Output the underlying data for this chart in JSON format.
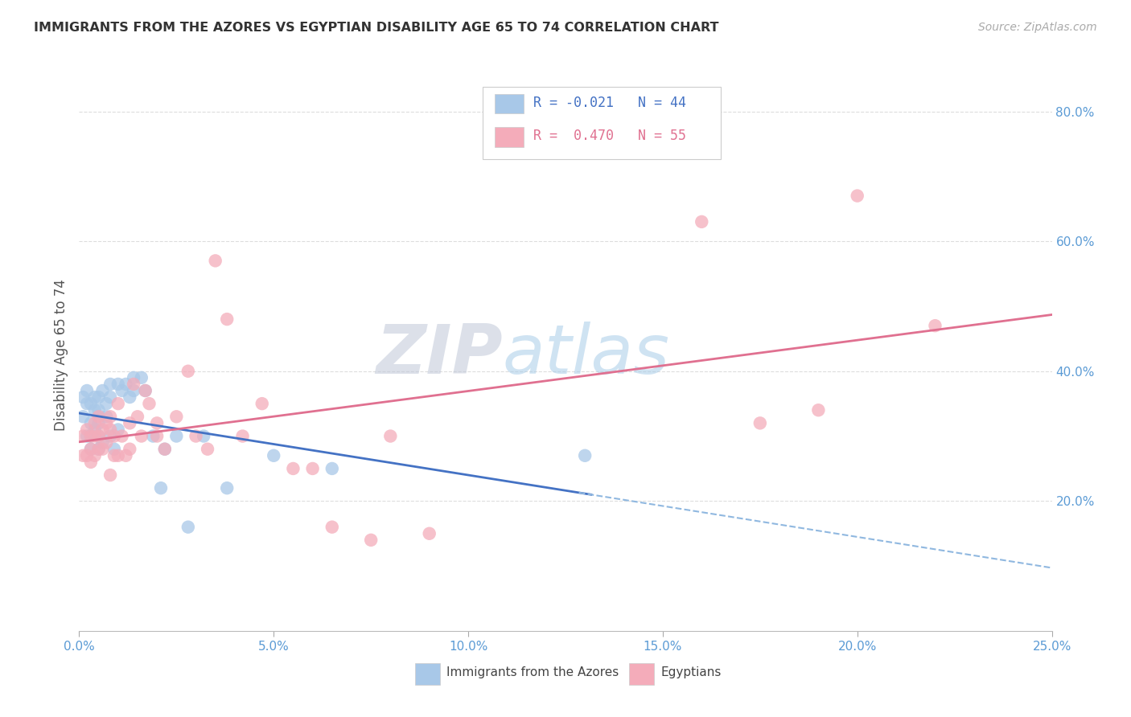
{
  "title": "IMMIGRANTS FROM THE AZORES VS EGYPTIAN DISABILITY AGE 65 TO 74 CORRELATION CHART",
  "source": "Source: ZipAtlas.com",
  "ylabel": "Disability Age 65 to 74",
  "xlim": [
    0.0,
    0.25
  ],
  "ylim": [
    0.0,
    0.85
  ],
  "xticks": [
    0.0,
    0.05,
    0.1,
    0.15,
    0.2,
    0.25
  ],
  "yticks": [
    0.2,
    0.4,
    0.6,
    0.8
  ],
  "background_color": "#ffffff",
  "grid_color": "#dddddd",
  "watermark_zip": "ZIP",
  "watermark_atlas": "atlas",
  "tick_color": "#5B9BD5",
  "series": [
    {
      "name": "Immigrants from the Azores",
      "dot_color": "#A8C8E8",
      "R": -0.021,
      "N": 44,
      "line_color": "#4472C4",
      "dashed_color": "#90B8E0",
      "x": [
        0.001,
        0.001,
        0.002,
        0.002,
        0.002,
        0.003,
        0.003,
        0.003,
        0.003,
        0.004,
        0.004,
        0.004,
        0.005,
        0.005,
        0.005,
        0.005,
        0.005,
        0.006,
        0.006,
        0.007,
        0.007,
        0.008,
        0.008,
        0.008,
        0.009,
        0.01,
        0.01,
        0.011,
        0.012,
        0.013,
        0.014,
        0.014,
        0.016,
        0.017,
        0.019,
        0.021,
        0.022,
        0.025,
        0.028,
        0.032,
        0.038,
        0.05,
        0.065,
        0.13
      ],
      "y": [
        0.36,
        0.33,
        0.37,
        0.35,
        0.3,
        0.35,
        0.32,
        0.3,
        0.28,
        0.36,
        0.34,
        0.31,
        0.36,
        0.34,
        0.32,
        0.3,
        0.28,
        0.37,
        0.29,
        0.35,
        0.33,
        0.38,
        0.36,
        0.3,
        0.28,
        0.38,
        0.31,
        0.37,
        0.38,
        0.36,
        0.39,
        0.37,
        0.39,
        0.37,
        0.3,
        0.22,
        0.28,
        0.3,
        0.16,
        0.3,
        0.22,
        0.27,
        0.25,
        0.27
      ]
    },
    {
      "name": "Egyptians",
      "dot_color": "#F4ACBA",
      "R": 0.47,
      "N": 55,
      "line_color": "#E07090",
      "dashed_color": null,
      "x": [
        0.001,
        0.001,
        0.002,
        0.002,
        0.003,
        0.003,
        0.003,
        0.004,
        0.004,
        0.004,
        0.005,
        0.005,
        0.005,
        0.006,
        0.006,
        0.007,
        0.007,
        0.008,
        0.008,
        0.008,
        0.009,
        0.009,
        0.01,
        0.01,
        0.011,
        0.012,
        0.013,
        0.013,
        0.014,
        0.015,
        0.016,
        0.017,
        0.018,
        0.02,
        0.02,
        0.022,
        0.025,
        0.028,
        0.03,
        0.033,
        0.035,
        0.038,
        0.042,
        0.047,
        0.055,
        0.06,
        0.065,
        0.075,
        0.08,
        0.09,
        0.16,
        0.175,
        0.19,
        0.2,
        0.22
      ],
      "y": [
        0.3,
        0.27,
        0.31,
        0.27,
        0.3,
        0.28,
        0.26,
        0.32,
        0.3,
        0.27,
        0.33,
        0.3,
        0.28,
        0.31,
        0.28,
        0.32,
        0.29,
        0.33,
        0.31,
        0.24,
        0.3,
        0.27,
        0.35,
        0.27,
        0.3,
        0.27,
        0.32,
        0.28,
        0.38,
        0.33,
        0.3,
        0.37,
        0.35,
        0.32,
        0.3,
        0.28,
        0.33,
        0.4,
        0.3,
        0.28,
        0.57,
        0.48,
        0.3,
        0.35,
        0.25,
        0.25,
        0.16,
        0.14,
        0.3,
        0.15,
        0.63,
        0.32,
        0.34,
        0.67,
        0.47
      ]
    }
  ]
}
